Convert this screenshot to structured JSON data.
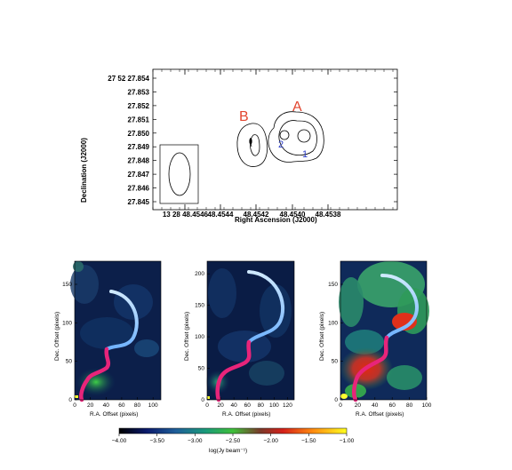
{
  "contour_map": {
    "xlabel": "Right Ascension (J2000)",
    "ylabel": "Declination (J2000)",
    "x_ticks": [
      "13 28 48.4546",
      "48.4544",
      "48.4542",
      "48.4540",
      "48.4538"
    ],
    "y_ticks": [
      "27 52 27.854",
      "27.853",
      "27.852",
      "27.851",
      "27.850",
      "27.849",
      "27.848",
      "27.847",
      "27.846",
      "27.845"
    ],
    "labels": {
      "A": "A",
      "B": "B",
      "one": "1",
      "two": "2"
    }
  },
  "panels": [
    {
      "ylabel": "Dec. Offset (pixels)",
      "xlabel": "R.A. Offset (pixels)",
      "x_ticks": [
        "0",
        "20",
        "40",
        "60",
        "80",
        "100"
      ],
      "y_ticks": [
        "0",
        "50",
        "100",
        "150"
      ]
    },
    {
      "ylabel": "Dec. Offset (pixels)",
      "xlabel": "R.A. Offset (pixels)",
      "x_ticks": [
        "0",
        "20",
        "40",
        "60",
        "80",
        "100",
        "120"
      ],
      "y_ticks": [
        "0",
        "50",
        "100",
        "150",
        "200"
      ]
    },
    {
      "ylabel": "Dec. Offset (pixels)",
      "xlabel": "R.A. Offset (pixels)",
      "x_ticks": [
        "0",
        "20",
        "40",
        "60",
        "80",
        "100"
      ],
      "y_ticks": [
        "0",
        "50",
        "100",
        "150"
      ]
    }
  ],
  "colorbar": {
    "label": "log(Jy beam⁻¹)",
    "ticks": [
      "−4.00",
      "−3.50",
      "−3.00",
      "−2.50",
      "−2.00",
      "−1.50",
      "−1.00"
    ],
    "range": [
      -4.0,
      -1.0
    ]
  },
  "chart_data": [
    {
      "type": "contour",
      "xlabel": "Right Ascension (J2000)",
      "ylabel": "Declination (J2000)",
      "xlim": [
        "13 28 48.4546",
        "48.4538"
      ],
      "ylim": [
        "27.845",
        "27 52 27.854"
      ],
      "annotations": [
        "A",
        "B",
        "1",
        "2"
      ]
    },
    {
      "type": "heatmap",
      "xlabel": "R.A. Offset (pixels)",
      "ylabel": "Dec. Offset (pixels)",
      "xlim": [
        0,
        110
      ],
      "ylim": [
        0,
        180
      ]
    },
    {
      "type": "heatmap",
      "xlabel": "R.A. Offset (pixels)",
      "ylabel": "Dec. Offset (pixels)",
      "xlim": [
        0,
        130
      ],
      "ylim": [
        0,
        220
      ]
    },
    {
      "type": "heatmap",
      "xlabel": "R.A. Offset (pixels)",
      "ylabel": "Dec. Offset (pixels)",
      "xlim": [
        0,
        100
      ],
      "ylim": [
        0,
        180
      ]
    }
  ]
}
